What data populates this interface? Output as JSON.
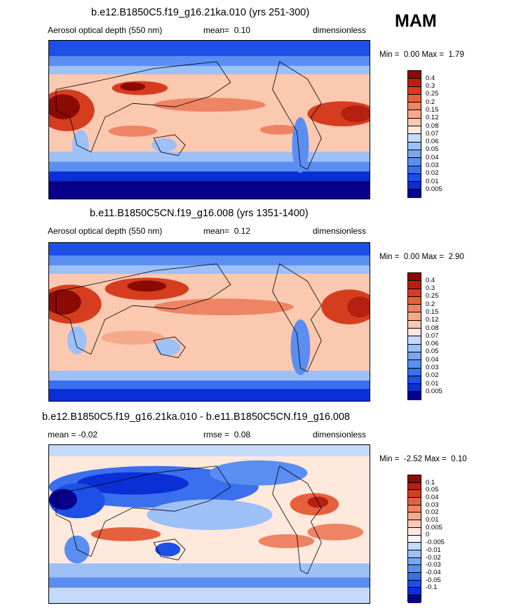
{
  "season": "MAM",
  "colors": {
    "ramp_aod": [
      "#08008c",
      "#0b2fd6",
      "#1c50e6",
      "#3a6fee",
      "#5a8ef2",
      "#7aa6f4",
      "#9dc0f7",
      "#c4dafb",
      "#ffe8dc",
      "#fbc8b0",
      "#f6a98a",
      "#ee8463",
      "#e5613e",
      "#d63d1f",
      "#b52010",
      "#8c0a04"
    ],
    "ramp_diff": [
      "#08008c",
      "#0b2fd6",
      "#1c50e6",
      "#3a6fee",
      "#5a8ef2",
      "#7aa6f4",
      "#9dc0f7",
      "#c4dafb",
      "#f3f7fe",
      "#ffe8dc",
      "#fbc8b0",
      "#f6a98a",
      "#ee8463",
      "#e5613e",
      "#d63d1f",
      "#b52010",
      "#8c0a04"
    ]
  },
  "panels": [
    {
      "title": "b.e12.B1850C5.f19_g16.21ka.010 (yrs 251-300)",
      "left": "Aerosol optical depth (550 nm)",
      "mid_label": "mean=",
      "mid_value": "0.10",
      "right": "dimensionless",
      "min_label": "Min =",
      "min_value": "0.00",
      "max_label": "Max =",
      "max_value": "1.79",
      "ticks": [
        "0.4",
        "0.3",
        "0.25",
        "0.2",
        "0.15",
        "0.12",
        "0.08",
        "0.07",
        "0.06",
        "0.05",
        "0.04",
        "0.03",
        "0.02",
        "0.01",
        "0.005"
      ]
    },
    {
      "title": "b.e11.B1850C5CN.f19_g16.008 (yrs 1351-1400)",
      "left": "Aerosol optical depth (550 nm)",
      "mid_label": "mean=",
      "mid_value": "0.12",
      "right": "dimensionless",
      "min_label": "Min =",
      "min_value": "0.00",
      "max_label": "Max =",
      "max_value": "2.90",
      "ticks": [
        "0.4",
        "0.3",
        "0.25",
        "0.2",
        "0.15",
        "0.12",
        "0.08",
        "0.07",
        "0.06",
        "0.05",
        "0.04",
        "0.03",
        "0.02",
        "0.01",
        "0.005"
      ]
    },
    {
      "title": "b.e12.B1850C5.f19_g16.21ka.010 - b.e11.B1850C5CN.f19_g16.008",
      "left": "mean =  -0.02",
      "mid_label": "rmse =",
      "mid_value": "0.08",
      "right": "dimensionless",
      "min_label": "Min =",
      "min_value": "-2.52",
      "max_label": "Max =",
      "max_value": "0.10",
      "ticks": [
        "0.1",
        "0.05",
        "0.04",
        "0.03",
        "0.02",
        "0.01",
        "0.005",
        "0",
        "-0.005",
        "-0.01",
        "-0.02",
        "-0.03",
        "-0.04",
        "-0.05",
        "-0.1"
      ]
    }
  ]
}
